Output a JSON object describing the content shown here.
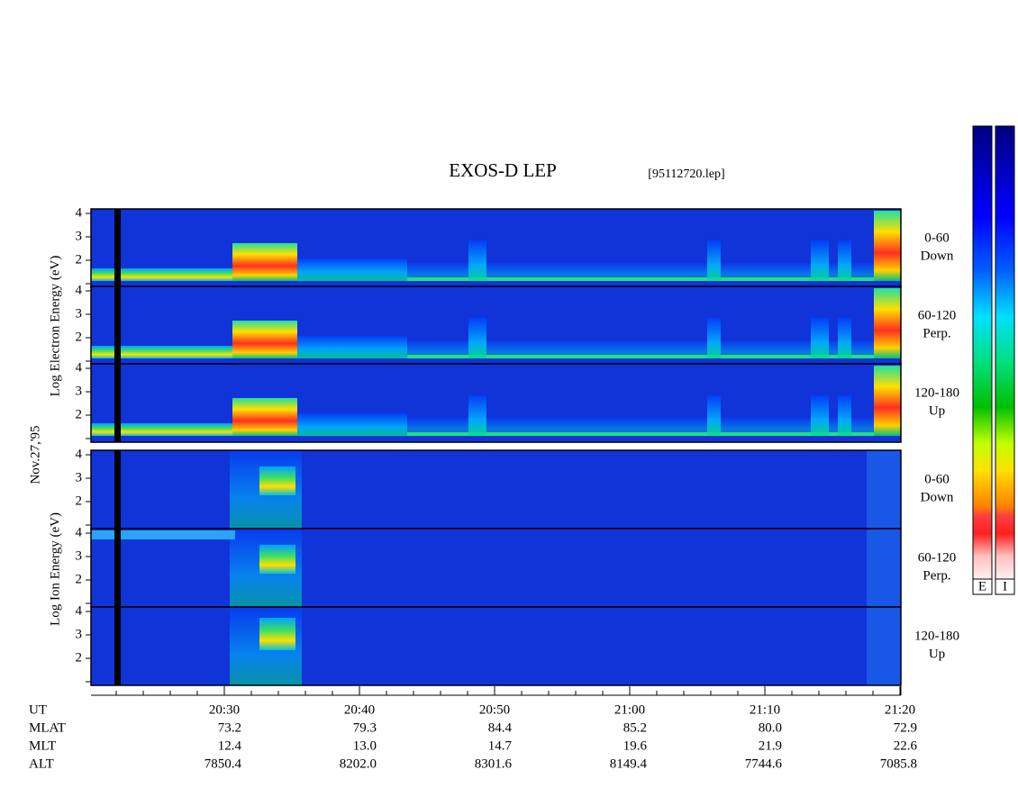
{
  "title": "EXOS-D LEP",
  "file": "[95112720.lep]",
  "date": "Nov.27,'95",
  "electron_axis_label": "Log Electron Energy (eV)",
  "ion_axis_label": "Log Ion Energy (eV)",
  "panel_ticks": [
    "4",
    "3",
    "2"
  ],
  "pitch_angles": [
    {
      "range": "0-60",
      "direction": "Down"
    },
    {
      "range": "60-120",
      "direction": "Perp."
    },
    {
      "range": "120-180",
      "direction": "Up"
    }
  ],
  "colorbar_labels": [
    "E",
    "I"
  ],
  "orbit_table": {
    "row_labels": [
      "UT",
      "MLAT",
      "MLT",
      "ALT"
    ],
    "columns": [
      [
        "20:30",
        "73.2",
        "12.4",
        "7850.4"
      ],
      [
        "20:40",
        "79.3",
        "13.0",
        "8202.0"
      ],
      [
        "20:50",
        "84.4",
        "14.7",
        "8301.6"
      ],
      [
        "21:00",
        "85.2",
        "19.6",
        "8149.4"
      ],
      [
        "21:10",
        "80.0",
        "21.9",
        "7744.6"
      ],
      [
        "21:20",
        "72.9",
        "22.6",
        "7085.8"
      ]
    ]
  }
}
